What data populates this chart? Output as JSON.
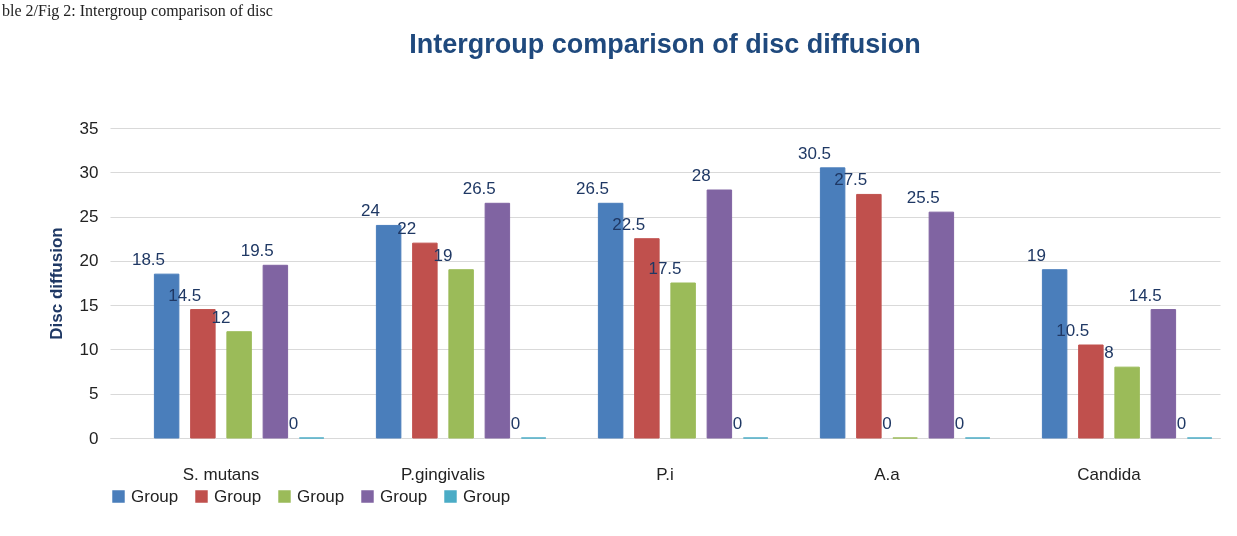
{
  "chart_data": {
    "type": "bar",
    "title": "Intergroup comparison of disc diffusion",
    "ylabel": "Disc diffusion",
    "annotations": [
      "ble 2/Fig 2: Intergroup comparison of disc"
    ],
    "categories": [
      "S. mutans",
      "P.gingivalis",
      "P.i",
      "A.a",
      "Candida"
    ],
    "series": [
      {
        "name": "Group",
        "color": "#4a7ebb",
        "values": [
          18.5,
          24,
          26.5,
          30.5,
          19
        ]
      },
      {
        "name": "Group",
        "color": "#c0504d",
        "values": [
          14.5,
          22,
          22.5,
          27.5,
          10.5
        ]
      },
      {
        "name": "Group",
        "color": "#9bbb59",
        "values": [
          12,
          19,
          17.5,
          0,
          8
        ]
      },
      {
        "name": "Group",
        "color": "#8064a2",
        "values": [
          19.5,
          26.5,
          28,
          25.5,
          14.5
        ]
      },
      {
        "name": "Group",
        "color": "#4bacc6",
        "values": [
          0,
          0,
          0,
          0,
          0
        ]
      }
    ],
    "ylim": [
      0,
      35
    ],
    "yticks": [
      0,
      5,
      10,
      15,
      20,
      25,
      30,
      35
    ],
    "grid": "y",
    "legend": "bottom",
    "data_labels": true
  }
}
